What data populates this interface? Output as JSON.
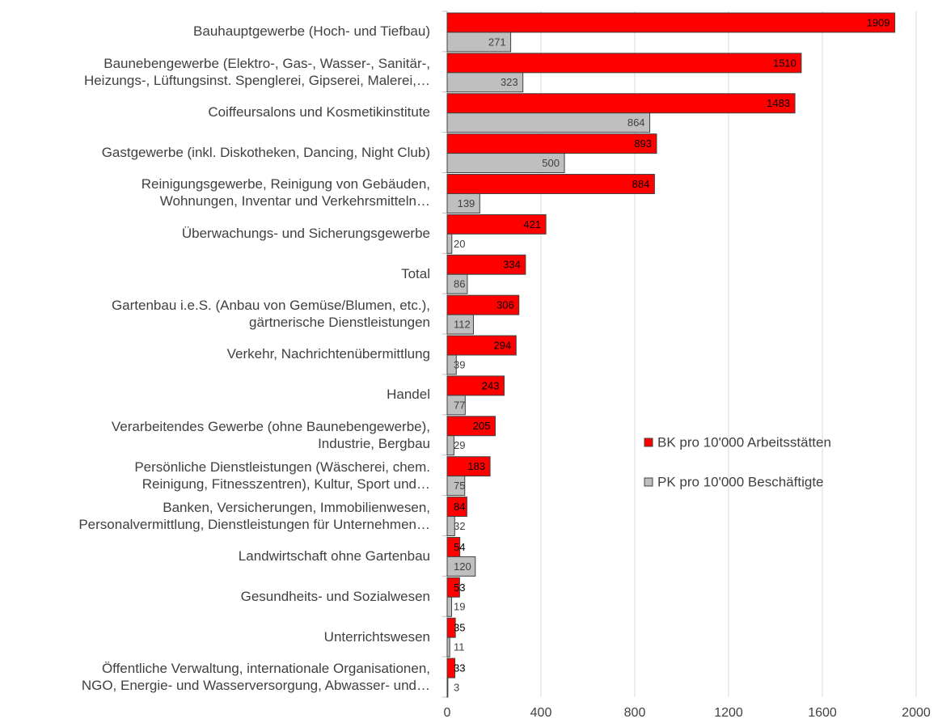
{
  "chart_data": {
    "type": "bar",
    "orientation": "horizontal",
    "categories": [
      "Bauhauptgewerbe (Hoch- und Tiefbau)",
      "Baunebengewerbe (Elektro-, Gas-, Wasser-, Sanitär-,\nHeizungs-, Lüftungsinst. Spenglerei, Gipserei, Malerei,…",
      "Coiffeursalons und Kosmetikinstitute",
      "Gastgewerbe (inkl. Diskotheken, Dancing, Night Club)",
      "Reinigungsgewerbe, Reinigung von Gebäuden,\nWohnungen, Inventar und Verkehrsmitteln…",
      "Überwachungs- und Sicherungsgewerbe",
      "Total",
      "Gartenbau i.e.S. (Anbau von Gemüse/Blumen, etc.),\ngärtnerische Dienstleistungen",
      "Verkehr, Nachrichtenübermittlung",
      "Handel",
      "Verarbeitendes Gewerbe (ohne Baunebengewerbe),\nIndustrie, Bergbau",
      "Persönliche Dienstleistungen (Wäscherei, chem.\nReinigung, Fitnesszentren), Kultur, Sport und…",
      "Banken, Versicherungen, Immobilienwesen,\nPersonalvermittlung, Dienstleistungen für Unternehmen…",
      "Landwirtschaft  ohne Gartenbau",
      "Gesundheits- und Sozialwesen",
      "Unterrichtswesen",
      "Öffentliche Verwaltung, internationale Organisationen,\nNGO, Energie- und Wasserversorgung, Abwasser- und…"
    ],
    "series": [
      {
        "name": "BK pro 10'000 Arbeitsstätten",
        "color": "#ff0000",
        "values": [
          1909,
          1510,
          1483,
          893,
          884,
          421,
          334,
          306,
          294,
          243,
          205,
          183,
          84,
          54,
          53,
          35,
          33
        ]
      },
      {
        "name": "PK pro 10'000 Beschäftigte",
        "color": "#bfbfbf",
        "values": [
          271,
          323,
          864,
          500,
          139,
          20,
          86,
          112,
          39,
          77,
          29,
          75,
          32,
          120,
          19,
          11,
          3
        ]
      }
    ],
    "xlim": [
      0,
      2000
    ],
    "xticks": [
      0,
      400,
      800,
      1200,
      1600,
      2000
    ],
    "grid": true,
    "legend": "right",
    "data_labels": true
  }
}
